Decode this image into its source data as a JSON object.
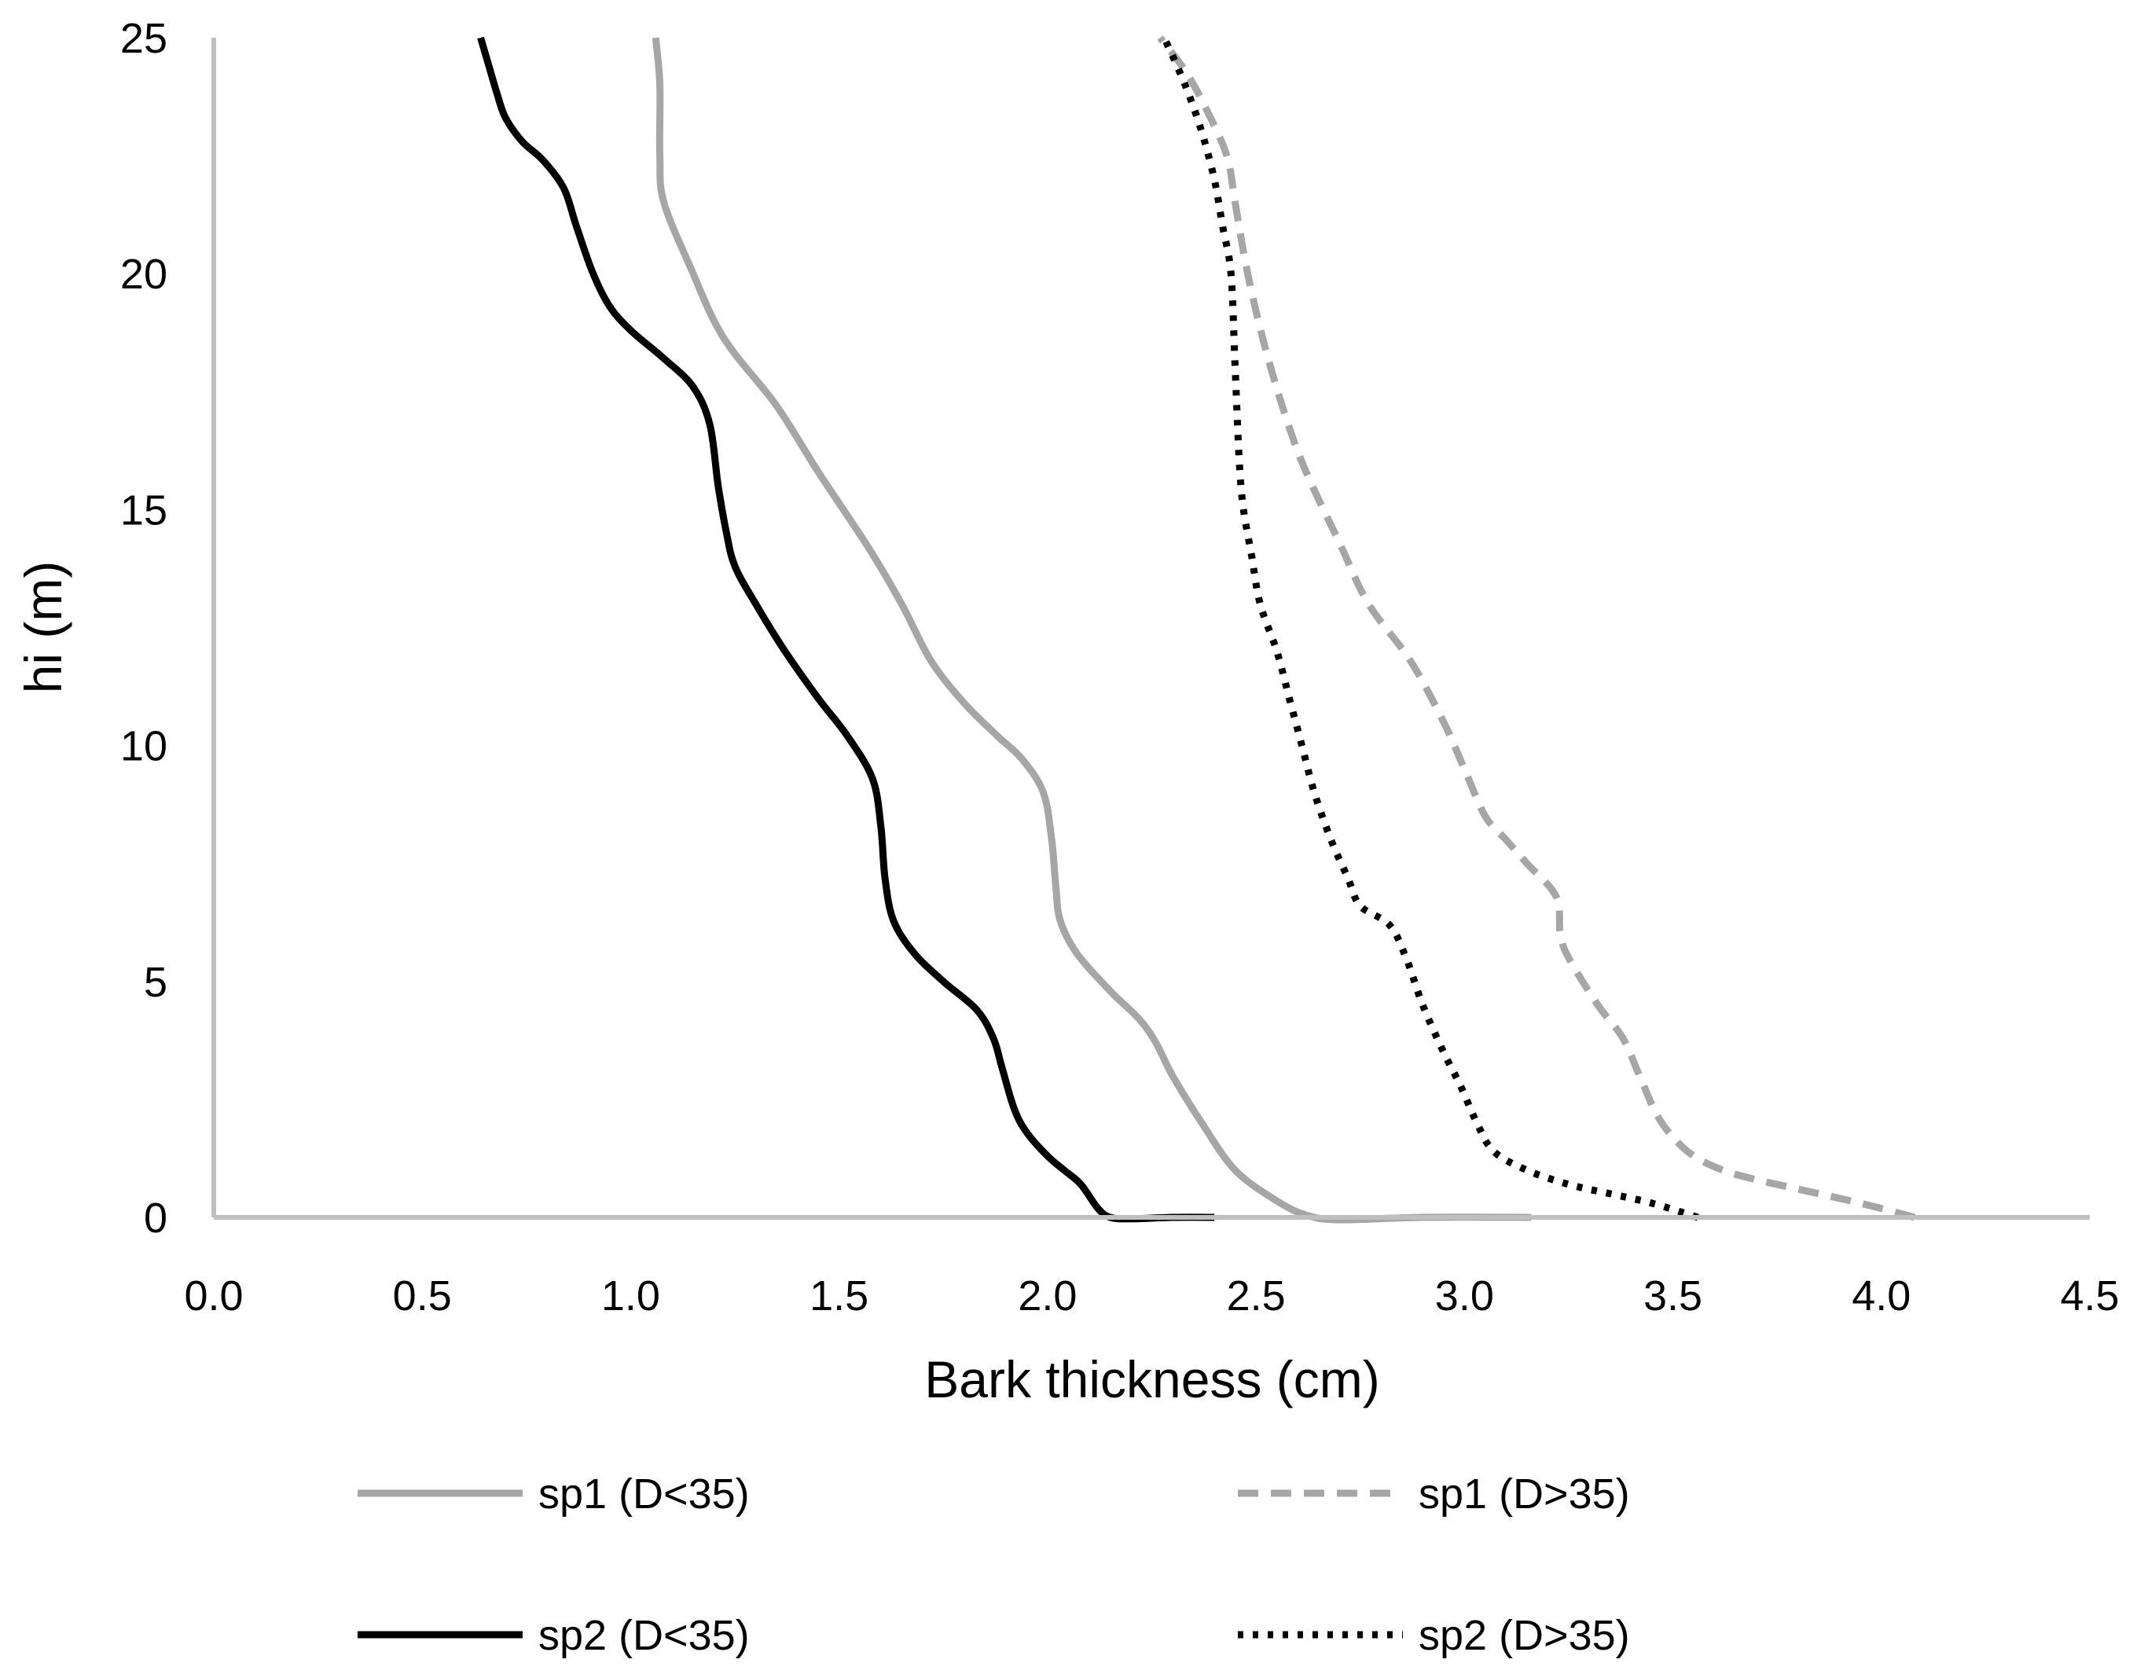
{
  "chart_data": {
    "type": "line",
    "title": "",
    "xlabel": "Bark thickness (cm)",
    "ylabel": "hi (m)",
    "xlim": [
      0.0,
      4.5
    ],
    "ylim": [
      0,
      25
    ],
    "x_ticks": [
      "0.0",
      "0.5",
      "1.0",
      "1.5",
      "2.0",
      "2.5",
      "3.0",
      "3.5",
      "4.0",
      "4.5"
    ],
    "y_ticks": [
      "0",
      "5",
      "10",
      "15",
      "20",
      "25"
    ],
    "grid": false,
    "legend_position": "bottom",
    "series": [
      {
        "name": "sp1 (D<35)",
        "color": "#a6a6a6",
        "style": "solid",
        "points": [
          [
            3.16,
            0.0
          ],
          [
            2.9,
            0.0
          ],
          [
            2.7,
            -0.05
          ],
          [
            2.62,
            0.05
          ],
          [
            2.55,
            0.35
          ],
          [
            2.45,
            1.0
          ],
          [
            2.37,
            2.0
          ],
          [
            2.3,
            3.0
          ],
          [
            2.26,
            3.7
          ],
          [
            2.22,
            4.2
          ],
          [
            2.15,
            4.8
          ],
          [
            2.07,
            5.6
          ],
          [
            2.03,
            6.3
          ],
          [
            2.02,
            7.0
          ],
          [
            2.01,
            8.0
          ],
          [
            1.99,
            9.0
          ],
          [
            1.94,
            9.7
          ],
          [
            1.88,
            10.2
          ],
          [
            1.8,
            10.9
          ],
          [
            1.72,
            11.8
          ],
          [
            1.65,
            13.0
          ],
          [
            1.57,
            14.2
          ],
          [
            1.45,
            15.8
          ],
          [
            1.35,
            17.2
          ],
          [
            1.25,
            18.3
          ],
          [
            1.2,
            19.0
          ],
          [
            1.15,
            20.0
          ],
          [
            1.08,
            21.5
          ],
          [
            1.07,
            22.5
          ],
          [
            1.07,
            24.0
          ],
          [
            1.06,
            25.0
          ]
        ]
      },
      {
        "name": "sp1 (D>35)",
        "color": "#a6a6a6",
        "style": "dashed",
        "points": [
          [
            4.08,
            0.0
          ],
          [
            3.95,
            0.3
          ],
          [
            3.8,
            0.6
          ],
          [
            3.7,
            0.8
          ],
          [
            3.62,
            1.0
          ],
          [
            3.55,
            1.3
          ],
          [
            3.5,
            1.7
          ],
          [
            3.46,
            2.2
          ],
          [
            3.42,
            3.0
          ],
          [
            3.38,
            3.8
          ],
          [
            3.32,
            4.5
          ],
          [
            3.25,
            5.5
          ],
          [
            3.23,
            6.0
          ],
          [
            3.22,
            6.8
          ],
          [
            3.15,
            7.5
          ],
          [
            3.1,
            8.0
          ],
          [
            3.05,
            8.5
          ],
          [
            3.0,
            9.5
          ],
          [
            2.95,
            10.5
          ],
          [
            2.87,
            11.8
          ],
          [
            2.77,
            13.0
          ],
          [
            2.7,
            14.3
          ],
          [
            2.62,
            15.8
          ],
          [
            2.57,
            17.0
          ],
          [
            2.52,
            18.5
          ],
          [
            2.48,
            20.0
          ],
          [
            2.45,
            21.5
          ],
          [
            2.43,
            22.5
          ],
          [
            2.38,
            23.5
          ],
          [
            2.33,
            24.3
          ],
          [
            2.27,
            25.0
          ]
        ]
      },
      {
        "name": "sp2 (D<35)",
        "color": "#000000",
        "style": "solid",
        "points": [
          [
            2.4,
            0.0
          ],
          [
            2.3,
            0.0
          ],
          [
            2.2,
            -0.03
          ],
          [
            2.15,
            0.0
          ],
          [
            2.12,
            0.2
          ],
          [
            2.08,
            0.7
          ],
          [
            2.04,
            1.0
          ],
          [
            2.0,
            1.3
          ],
          [
            1.95,
            1.8
          ],
          [
            1.92,
            2.3
          ],
          [
            1.89,
            3.2
          ],
          [
            1.87,
            3.8
          ],
          [
            1.83,
            4.4
          ],
          [
            1.75,
            5.0
          ],
          [
            1.68,
            5.6
          ],
          [
            1.63,
            6.3
          ],
          [
            1.61,
            7.2
          ],
          [
            1.6,
            8.3
          ],
          [
            1.58,
            9.3
          ],
          [
            1.52,
            10.2
          ],
          [
            1.45,
            11.0
          ],
          [
            1.37,
            12.0
          ],
          [
            1.3,
            13.0
          ],
          [
            1.25,
            13.8
          ],
          [
            1.23,
            14.5
          ],
          [
            1.21,
            15.5
          ],
          [
            1.19,
            16.8
          ],
          [
            1.15,
            17.6
          ],
          [
            1.08,
            18.2
          ],
          [
            1.0,
            18.8
          ],
          [
            0.95,
            19.3
          ],
          [
            0.91,
            20.0
          ],
          [
            0.87,
            21.0
          ],
          [
            0.84,
            21.8
          ],
          [
            0.79,
            22.4
          ],
          [
            0.74,
            22.8
          ],
          [
            0.7,
            23.3
          ],
          [
            0.68,
            23.8
          ],
          [
            0.66,
            24.4
          ],
          [
            0.64,
            25.0
          ]
        ]
      },
      {
        "name": "sp2 (D>35)",
        "color": "#000000",
        "style": "dotted",
        "points": [
          [
            3.56,
            0.0
          ],
          [
            3.45,
            0.3
          ],
          [
            3.35,
            0.5
          ],
          [
            3.25,
            0.7
          ],
          [
            3.15,
            1.0
          ],
          [
            3.07,
            1.4
          ],
          [
            3.03,
            2.0
          ],
          [
            2.99,
            2.8
          ],
          [
            2.95,
            3.5
          ],
          [
            2.9,
            4.5
          ],
          [
            2.86,
            5.5
          ],
          [
            2.82,
            6.2
          ],
          [
            2.75,
            6.6
          ],
          [
            2.72,
            7.2
          ],
          [
            2.68,
            8.0
          ],
          [
            2.64,
            9.0
          ],
          [
            2.61,
            10.0
          ],
          [
            2.58,
            11.0
          ],
          [
            2.55,
            12.0
          ],
          [
            2.51,
            13.0
          ],
          [
            2.49,
            14.0
          ],
          [
            2.47,
            15.0
          ],
          [
            2.46,
            16.0
          ],
          [
            2.45,
            18.0
          ],
          [
            2.44,
            20.0
          ],
          [
            2.42,
            21.0
          ],
          [
            2.4,
            22.0
          ],
          [
            2.37,
            23.0
          ],
          [
            2.33,
            24.0
          ],
          [
            2.28,
            25.0
          ]
        ]
      }
    ]
  }
}
